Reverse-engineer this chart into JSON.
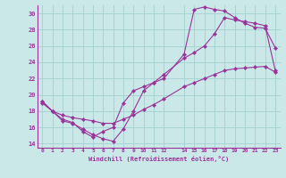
{
  "xlabel": "Windchill (Refroidissement éolien,°C)",
  "bg_color": "#cbe8e8",
  "grid_color": "#a8d4d4",
  "line_color": "#993399",
  "xlim": [
    -0.5,
    23.5
  ],
  "ylim": [
    13.5,
    31.0
  ],
  "xticks": [
    0,
    1,
    2,
    3,
    4,
    5,
    6,
    7,
    8,
    9,
    10,
    11,
    12,
    14,
    15,
    16,
    17,
    18,
    19,
    20,
    21,
    22,
    23
  ],
  "yticks": [
    14,
    16,
    18,
    20,
    22,
    24,
    26,
    28,
    30
  ],
  "curve1_x": [
    0,
    1,
    2,
    3,
    4,
    5,
    6,
    7,
    8,
    9,
    10,
    11,
    12,
    14,
    15,
    16,
    17,
    18,
    19,
    20,
    21,
    22,
    23
  ],
  "curve1_y": [
    19.2,
    18.0,
    16.8,
    16.5,
    15.8,
    15.1,
    14.6,
    14.3,
    15.8,
    18.0,
    20.5,
    21.5,
    22.0,
    25.0,
    30.5,
    30.8,
    30.5,
    30.3,
    29.5,
    28.8,
    28.3,
    28.2,
    25.8
  ],
  "curve2_x": [
    0,
    1,
    2,
    3,
    4,
    5,
    6,
    7,
    8,
    9,
    10,
    11,
    12,
    14,
    15,
    16,
    17,
    18,
    19,
    20,
    21,
    22,
    23
  ],
  "curve2_y": [
    19.2,
    18.0,
    17.0,
    16.6,
    15.5,
    14.8,
    15.5,
    16.0,
    19.0,
    20.5,
    21.0,
    21.5,
    22.5,
    24.5,
    25.2,
    26.0,
    27.5,
    29.5,
    29.2,
    29.0,
    28.8,
    28.5,
    23.0
  ],
  "curve3_x": [
    0,
    1,
    2,
    3,
    4,
    5,
    6,
    7,
    8,
    9,
    10,
    11,
    12,
    14,
    15,
    16,
    17,
    18,
    19,
    20,
    21,
    22,
    23
  ],
  "curve3_y": [
    19.0,
    18.0,
    17.5,
    17.2,
    17.0,
    16.8,
    16.5,
    16.5,
    17.0,
    17.5,
    18.2,
    18.8,
    19.5,
    21.0,
    21.5,
    22.0,
    22.5,
    23.0,
    23.2,
    23.3,
    23.4,
    23.5,
    22.8
  ]
}
